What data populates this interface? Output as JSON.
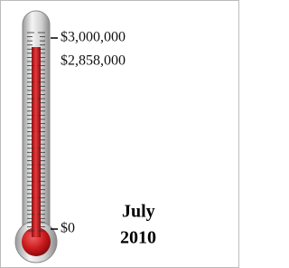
{
  "chart_data": {
    "type": "thermometer",
    "values": [
      2858000
    ],
    "value_labels": [
      "$2,858,000"
    ],
    "color": "#c8171b",
    "ylim": [
      0,
      3000000
    ],
    "yticks": [
      {
        "value": 0,
        "label": "$0"
      },
      {
        "value": 3000000,
        "label": "$3,000,000"
      }
    ],
    "annotation": [
      "July",
      "2010"
    ]
  }
}
